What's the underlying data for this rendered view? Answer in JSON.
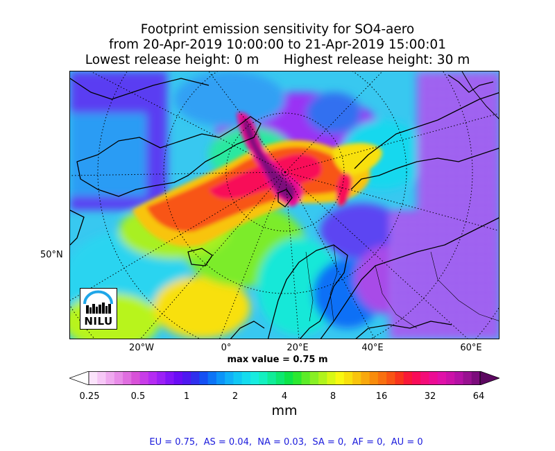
{
  "title": {
    "line1": "Footprint emission sensitivity for SO4-aero",
    "line2": "from 20-Apr-2019 10:00:00 to 21-Apr-2019 15:00:01",
    "line3": "Lowest release height: 0 m      Highest release height: 30 m"
  },
  "map": {
    "projection": "polar stereographic",
    "lat_labels": [
      "50°N"
    ],
    "lon_labels": [
      "20°W",
      "0°",
      "20°E",
      "40°E",
      "60°E"
    ],
    "logo_text": "NILU",
    "max_value_label": "max value = 0.75 m"
  },
  "colorbar": {
    "tick_labels": [
      "0.25",
      "0.5",
      "1",
      "2",
      "4",
      "8",
      "16",
      "32",
      "64"
    ],
    "unit": "mm",
    "colors": [
      "#ffffff",
      "#fbe3fb",
      "#f6c7f6",
      "#efa9ef",
      "#e88ce8",
      "#e06ee0",
      "#d851d8",
      "#c83ce8",
      "#b52cf2",
      "#9c20f6",
      "#8214f8",
      "#6a0cf6",
      "#4e18f0",
      "#3030ee",
      "#1450f4",
      "#0c74f6",
      "#0c94f8",
      "#10b0f8",
      "#10c8f4",
      "#14dcee",
      "#18ece0",
      "#14f0c0",
      "#10ec98",
      "#0ce870",
      "#0ce448",
      "#2ce830",
      "#5cec28",
      "#88f024",
      "#b0f41c",
      "#d8f814",
      "#f8f810",
      "#f8e00c",
      "#f8c40c",
      "#f8a80c",
      "#f88c0c",
      "#f87010",
      "#f85414",
      "#f8341c",
      "#f81838",
      "#f80c58",
      "#f40c78",
      "#ec0c94",
      "#e010a8",
      "#cc10a8",
      "#b410a4",
      "#981090",
      "#7c0c7c",
      "#5c0860"
    ]
  },
  "regions_summary": "EU = 0.75,  AS = 0.04,  NA = 0.03,  SA = 0,  AF = 0,  AU = 0"
}
